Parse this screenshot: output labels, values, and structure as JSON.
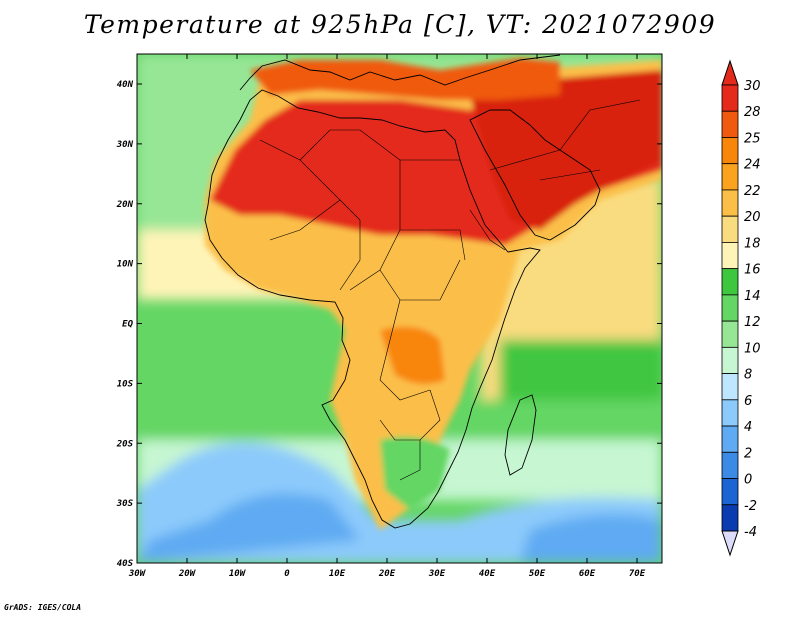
{
  "title": "Temperature at 925hPa [C], VT: 2021072909",
  "footer": "GrADS: IGES/COLA",
  "map": {
    "lat_labels": [
      "40N",
      "30N",
      "20N",
      "10N",
      "EQ",
      "10S",
      "20S",
      "30S",
      "40S"
    ],
    "lon_labels": [
      "30W",
      "20W",
      "10W",
      "0",
      "10E",
      "20E",
      "30E",
      "40E",
      "50E",
      "60E",
      "70E"
    ]
  },
  "colorbar": {
    "levels": [
      "30",
      "28",
      "25",
      "24",
      "22",
      "20",
      "18",
      "16",
      "14",
      "12",
      "10",
      "8",
      "6",
      "4",
      "2",
      "0",
      "-2",
      "-4"
    ],
    "colors": [
      "#e42a1a",
      "#f05a0f",
      "#f8860a",
      "#fba21e",
      "#fbbf48",
      "#fadc80",
      "#fff4b8",
      "#3fc63f",
      "#64d664",
      "#96e696",
      "#c6f6d2",
      "#bfe6ff",
      "#8ccafb",
      "#5faaf2",
      "#3b8ae6",
      "#1a64d4",
      "#0a3cb0",
      "#0a1a7a",
      "#dcdcfa"
    ]
  },
  "colors": {
    "ocean_warm": "#fff4b8",
    "ocean_mid": "#64d664",
    "ocean_cool": "#c6f6d2",
    "ocean_cold": "#8ccafb",
    "land_hot": "#e42a1a",
    "land_warm": "#fbbf48"
  }
}
